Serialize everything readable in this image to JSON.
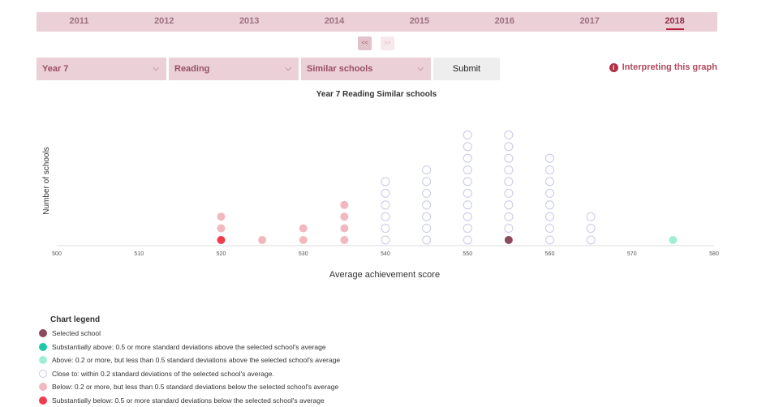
{
  "years": [
    "2011",
    "2012",
    "2013",
    "2014",
    "2015",
    "2016",
    "2017",
    "2018"
  ],
  "active_year": "2018",
  "nav": {
    "prev": "<<",
    "next": ">>"
  },
  "filters": {
    "year_level": "Year 7",
    "domain": "Reading",
    "comparison": "Similar schools"
  },
  "submit_label": "Submit",
  "interpret_label": "Interpreting this graph",
  "chevron_glyph": "⌵",
  "info_glyph": "i",
  "colors": {
    "selected": "#8c4a5c",
    "subst_above": "#1cc9a8",
    "above": "#9ff0d2",
    "close": "#ffffff",
    "close_stroke": "#c7c9e6",
    "below": "#f3b8bf",
    "subst_below": "#f03c4f"
  },
  "chart_data": {
    "type": "scatter",
    "title": "Year 7 Reading Similar schools",
    "xlabel": "Average achievement score",
    "ylabel": "Number of schools",
    "xlim": [
      500,
      580
    ],
    "xticks": [
      500,
      510,
      520,
      530,
      540,
      550,
      560,
      570,
      580
    ],
    "stacks": [
      {
        "x": 520,
        "count": 3,
        "categories": [
          "subst_below",
          "below",
          "below"
        ]
      },
      {
        "x": 525,
        "count": 1,
        "categories": [
          "below"
        ]
      },
      {
        "x": 530,
        "count": 2,
        "categories": [
          "below",
          "below"
        ]
      },
      {
        "x": 535,
        "count": 4,
        "categories": [
          "below",
          "below",
          "below",
          "below"
        ]
      },
      {
        "x": 540,
        "count": 6,
        "categories": [
          "close",
          "close",
          "close",
          "close",
          "close",
          "close"
        ]
      },
      {
        "x": 545,
        "count": 7,
        "categories": [
          "close",
          "close",
          "close",
          "close",
          "close",
          "close",
          "close"
        ]
      },
      {
        "x": 550,
        "count": 10,
        "categories": [
          "close",
          "close",
          "close",
          "close",
          "close",
          "close",
          "close",
          "close",
          "close",
          "close"
        ]
      },
      {
        "x": 555,
        "count": 10,
        "categories": [
          "selected",
          "close",
          "close",
          "close",
          "close",
          "close",
          "close",
          "close",
          "close",
          "close"
        ]
      },
      {
        "x": 560,
        "count": 8,
        "categories": [
          "close",
          "close",
          "close",
          "close",
          "close",
          "close",
          "close",
          "close"
        ]
      },
      {
        "x": 565,
        "count": 3,
        "categories": [
          "close",
          "close",
          "close"
        ]
      },
      {
        "x": 575,
        "count": 1,
        "categories": [
          "above"
        ]
      }
    ],
    "legend": {
      "title": "Chart legend",
      "items": [
        {
          "key": "selected",
          "label": "Selected school"
        },
        {
          "key": "subst_above",
          "label": "Substantially above: 0.5 or more standard deviations above the selected school's average"
        },
        {
          "key": "above",
          "label": "Above: 0.2 or more, but less than 0.5 standard deviations above the selected school's average"
        },
        {
          "key": "close",
          "label": "Close to: within 0.2 standard deviations of the selected school's average."
        },
        {
          "key": "below",
          "label": "Below: 0.2 or more, but less than 0.5 standard deviations below the selected school's average"
        },
        {
          "key": "subst_below",
          "label": "Substantially below: 0.5 or more standard deviations below the selected school's average"
        }
      ]
    }
  }
}
